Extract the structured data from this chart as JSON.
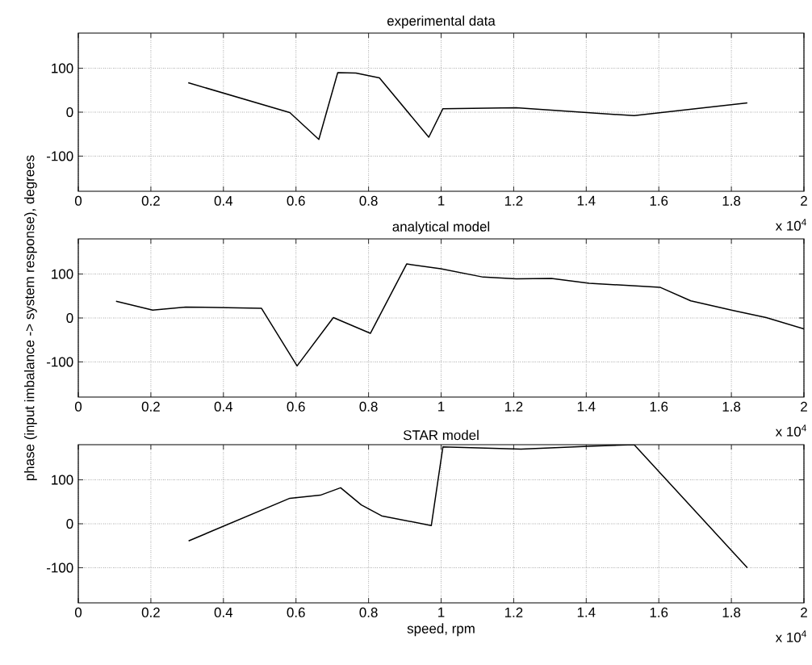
{
  "chart_data": [
    {
      "type": "line",
      "title": "experimental data",
      "x": [
        0.303,
        0.583,
        0.663,
        0.715,
        0.765,
        0.83,
        0.966,
        1.005,
        1.207,
        1.532,
        1.844
      ],
      "series": [
        {
          "color": "#000000",
          "values": [
            67,
            -1,
            -62,
            90,
            89,
            78,
            -57,
            8,
            10,
            -8,
            21
          ]
        }
      ],
      "xlim": [
        0,
        2
      ],
      "ylim": [
        -180,
        180
      ],
      "xticks": [
        0,
        0.2,
        0.4,
        0.6,
        0.8,
        1,
        1.2,
        1.4,
        1.6,
        1.8,
        2
      ],
      "yticks": [
        -100,
        0,
        100
      ],
      "grid": true,
      "line_style": "solid",
      "annotations": [
        "x 10$^{4}$"
      ]
    },
    {
      "type": "line",
      "title": "analytical model",
      "ylabel": "phase (input imbalance -> system response), degrees",
      "x": [
        0.104,
        0.205,
        0.296,
        0.505,
        0.603,
        0.703,
        0.805,
        0.905,
        0.999,
        1.116,
        1.207,
        1.304,
        1.408,
        1.603,
        1.688,
        1.805,
        1.896,
        2.0
      ],
      "series": [
        {
          "color": "#000000",
          "values": [
            38,
            18,
            25,
            22,
            -109,
            1,
            -35,
            123,
            112,
            93,
            89,
            90,
            79,
            70,
            39,
            17,
            1,
            -25
          ]
        }
      ],
      "xlim": [
        0,
        2
      ],
      "ylim": [
        -180,
        180
      ],
      "xticks": [
        0,
        0.2,
        0.4,
        0.6,
        0.8,
        1,
        1.2,
        1.4,
        1.6,
        1.8,
        2
      ],
      "yticks": [
        -100,
        0,
        100
      ],
      "grid": true,
      "line_style": "solid",
      "annotations": [
        "x 10$^{4}$"
      ]
    },
    {
      "type": "line",
      "title": "STAR model",
      "xlabel": "speed, rpm",
      "x": [
        0.304,
        0.583,
        0.667,
        0.723,
        0.78,
        0.836,
        0.973,
        1.005,
        1.22,
        1.42,
        1.532,
        1.844
      ],
      "series": [
        {
          "color": "#000000",
          "values": [
            -39,
            58,
            65,
            82,
            43,
            18,
            -4,
            175,
            170,
            177,
            180,
            -100
          ]
        }
      ],
      "xlim": [
        0,
        2
      ],
      "ylim": [
        -180,
        180
      ],
      "xticks": [
        0,
        0.2,
        0.4,
        0.6,
        0.8,
        1,
        1.2,
        1.4,
        1.6,
        1.8,
        2
      ],
      "yticks": [
        -100,
        0,
        100
      ],
      "grid": true,
      "line_style": "solid",
      "annotations": [
        "x 10$^{4}$"
      ]
    }
  ]
}
